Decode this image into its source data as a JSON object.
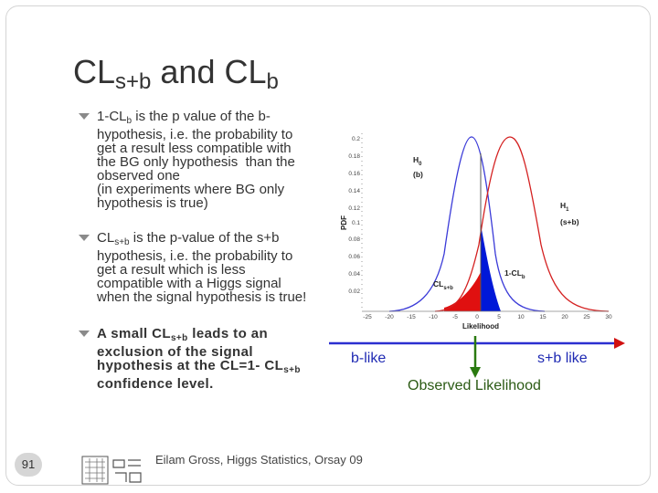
{
  "slide": {
    "title_main": "CL",
    "title_sub1": "s+b",
    "title_mid": " and CL",
    "title_sub2": "b",
    "page_number": "91",
    "footer": "Eilam Gross, Higgs Statistics, Orsay 09"
  },
  "bullets": [
    {
      "line1_pre": "1-CL",
      "line1_sub": "b",
      "line1_post": " is the p value of the b-",
      "lines": [
        "hypothesis, i.e. the probability to",
        "get a result less compatible with",
        "the BG only hypothesis  than the",
        "observed one",
        "(in experiments where BG only",
        "hypothesis is true)"
      ]
    },
    {
      "line1_pre": "CL",
      "line1_sub": "s+b",
      "line1_post": " is the p-value of the s+b",
      "lines": [
        "hypothesis, i.e. the probability to",
        "get a result which is less",
        "compatible with a Higgs signal",
        "when the signal hypothesis is true!"
      ]
    },
    {
      "line1_pre": "A small CL",
      "line1_sub": "s+b",
      "line1_post": " leads to an",
      "lines": [
        "exclusion of the signal"
      ],
      "line3_pre": "hypothesis at the CL=1- CL",
      "line3_sub": "s+b",
      "lines_after": [
        "confidence level."
      ]
    }
  ],
  "figure": {
    "ylabel": "PDF",
    "xlabel": "Likelihood",
    "yticks": [
      "0.2",
      "0.18",
      "0.16",
      "0.14",
      "0.12",
      "0.1",
      "0.08",
      "0.06",
      "0.04",
      "0.02"
    ],
    "xticks": [
      "-25",
      "-20",
      "-15",
      "-10",
      "-5",
      "0",
      "5",
      "10",
      "15",
      "20",
      "25",
      "30"
    ],
    "h0_label": "H",
    "h0_sub": "0",
    "h0_note": "(b)",
    "h1_label": "H",
    "h1_sub": "1",
    "h1_note": "(s+b)",
    "clsb_label": "CL",
    "clsb_sub": "s+b",
    "oneclb_label": "1-CL",
    "oneclb_sub": "b",
    "colors": {
      "h0_curve": "#3b3bd8",
      "h1_curve": "#d42020",
      "blue_fill": "#0018d8",
      "red_fill": "#e01010"
    }
  },
  "arrow": {
    "left_label": "b-like",
    "right_label": "s+b like",
    "observed_label": "Observed Likelihood",
    "colors": {
      "line": "#2b2fd0",
      "arrowhead": "#d01010",
      "observed": "#2a7a10"
    }
  }
}
